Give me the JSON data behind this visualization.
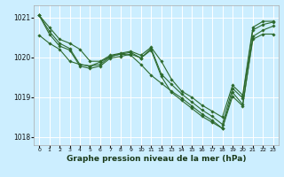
{
  "background_color": "#cceeff",
  "grid_color": "#ffffff",
  "line_color": "#2d6a2d",
  "marker": "D",
  "marker_size": 1.8,
  "line_width": 0.8,
  "title": "Graphe pression niveau de la mer (hPa)",
  "ylim": [
    1017.8,
    1021.3
  ],
  "xlim": [
    -0.5,
    23.5
  ],
  "yticks": [
    1018,
    1019,
    1020,
    1021
  ],
  "xticks": [
    0,
    1,
    2,
    3,
    4,
    5,
    6,
    7,
    8,
    9,
    10,
    11,
    12,
    13,
    14,
    15,
    16,
    17,
    18,
    19,
    20,
    21,
    22,
    23
  ],
  "series": [
    [
      1021.05,
      1020.75,
      1020.45,
      1020.35,
      1020.2,
      1019.9,
      1019.9,
      1020.05,
      1020.1,
      1020.15,
      1020.05,
      1020.25,
      1019.9,
      1019.45,
      1019.15,
      1019.0,
      1018.8,
      1018.65,
      1018.5,
      1019.3,
      1019.05,
      1020.75,
      1020.9,
      1020.9
    ],
    [
      1020.55,
      1020.35,
      1020.2,
      1019.9,
      1019.82,
      1019.78,
      1019.88,
      1020.02,
      1020.08,
      1020.05,
      1019.82,
      1019.55,
      1019.35,
      1019.15,
      1018.98,
      1018.78,
      1018.58,
      1018.42,
      1018.22,
      1019.12,
      1018.82,
      1020.45,
      1020.58,
      1020.58
    ],
    [
      1021.05,
      1020.65,
      1020.35,
      1020.22,
      1019.82,
      1019.78,
      1019.82,
      1020.02,
      1020.08,
      1020.12,
      1019.98,
      1020.22,
      1019.58,
      1019.32,
      1019.08,
      1018.88,
      1018.68,
      1018.52,
      1018.32,
      1019.22,
      1018.98,
      1020.68,
      1020.82,
      1020.88
    ],
    [
      1021.05,
      1020.58,
      1020.28,
      1020.18,
      1019.78,
      1019.72,
      1019.78,
      1019.98,
      1020.02,
      1020.08,
      1019.98,
      1020.18,
      1019.52,
      1019.12,
      1018.92,
      1018.72,
      1018.52,
      1018.37,
      1018.22,
      1019.02,
      1018.78,
      1020.52,
      1020.68,
      1020.78
    ]
  ]
}
